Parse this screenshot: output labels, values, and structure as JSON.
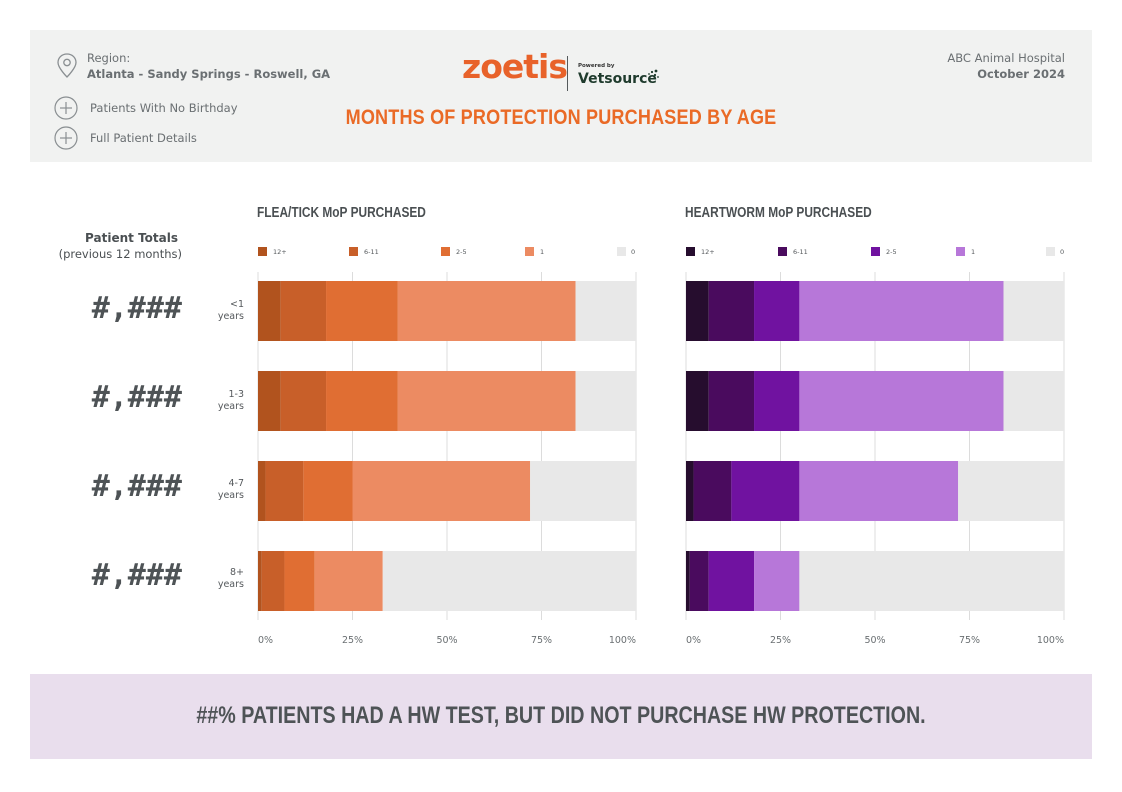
{
  "header": {
    "region_label": "Region:",
    "region_value": "Atlanta - Sandy Springs - Roswell, GA",
    "links": [
      "Patients With No Birthday",
      "Full Patient Details"
    ],
    "logo_text": "zoetis",
    "powered_by": "Powered by",
    "vetsource": "Vetsource",
    "hospital": "ABC Animal Hospital",
    "period": "October 2024",
    "title": "MONTHS OF PROTECTION PURCHASED BY AGE"
  },
  "totals": {
    "title": "Patient Totals",
    "subtitle": "(previous 12 months)",
    "values": [
      "#,###",
      "#,###",
      "#,###",
      "#,###"
    ]
  },
  "age_groups": [
    {
      "line1": "<1",
      "line2": "years"
    },
    {
      "line1": "1-3",
      "line2": "years"
    },
    {
      "line1": "4-7",
      "line2": "years"
    },
    {
      "line1": "8+",
      "line2": "years"
    }
  ],
  "chart_data": [
    {
      "type": "bar",
      "orientation": "horizontal",
      "stacked": true,
      "title": "FLEA/TICK MoP PURCHASED",
      "categories": [
        "<1 years",
        "1-3 years",
        "4-7 years",
        "8+ years"
      ],
      "xlim": [
        0,
        100
      ],
      "x_ticks": [
        "0%",
        "25%",
        "50%",
        "75%",
        "100%"
      ],
      "grid": true,
      "legend_position": "top",
      "series": [
        {
          "name": "12+",
          "color": "#b1531e",
          "values": [
            6,
            6,
            2,
            1
          ]
        },
        {
          "name": "6-11",
          "color": "#c85f29",
          "values": [
            12,
            12,
            10,
            6
          ]
        },
        {
          "name": "2-5",
          "color": "#e06e33",
          "values": [
            19,
            19,
            13,
            8
          ]
        },
        {
          "name": "1",
          "color": "#ec8b62",
          "values": [
            47,
            47,
            47,
            18
          ]
        },
        {
          "name": "0",
          "color": "#e8e8e8",
          "values": [
            16,
            16,
            28,
            67
          ]
        }
      ]
    },
    {
      "type": "bar",
      "orientation": "horizontal",
      "stacked": true,
      "title": "HEARTWORM MoP PURCHASED",
      "categories": [
        "<1 years",
        "1-3 years",
        "4-7 years",
        "8+ years"
      ],
      "xlim": [
        0,
        100
      ],
      "x_ticks": [
        "0%",
        "25%",
        "50%",
        "75%",
        "100%"
      ],
      "grid": true,
      "legend_position": "top",
      "series": [
        {
          "name": "12+",
          "color": "#260d2e",
          "values": [
            6,
            6,
            2,
            1
          ]
        },
        {
          "name": "6-11",
          "color": "#4a0b5e",
          "values": [
            12,
            12,
            10,
            5
          ]
        },
        {
          "name": "2-5",
          "color": "#7012a0",
          "values": [
            12,
            12,
            18,
            12
          ]
        },
        {
          "name": "1",
          "color": "#b777d9",
          "values": [
            54,
            54,
            42,
            12
          ]
        },
        {
          "name": "0",
          "color": "#e8e8e8",
          "values": [
            16,
            16,
            28,
            70
          ]
        }
      ]
    }
  ],
  "footer": {
    "text": "##% PATIENTS HAD A HW TEST, BUT DID NOT PURCHASE HW PROTECTION."
  }
}
